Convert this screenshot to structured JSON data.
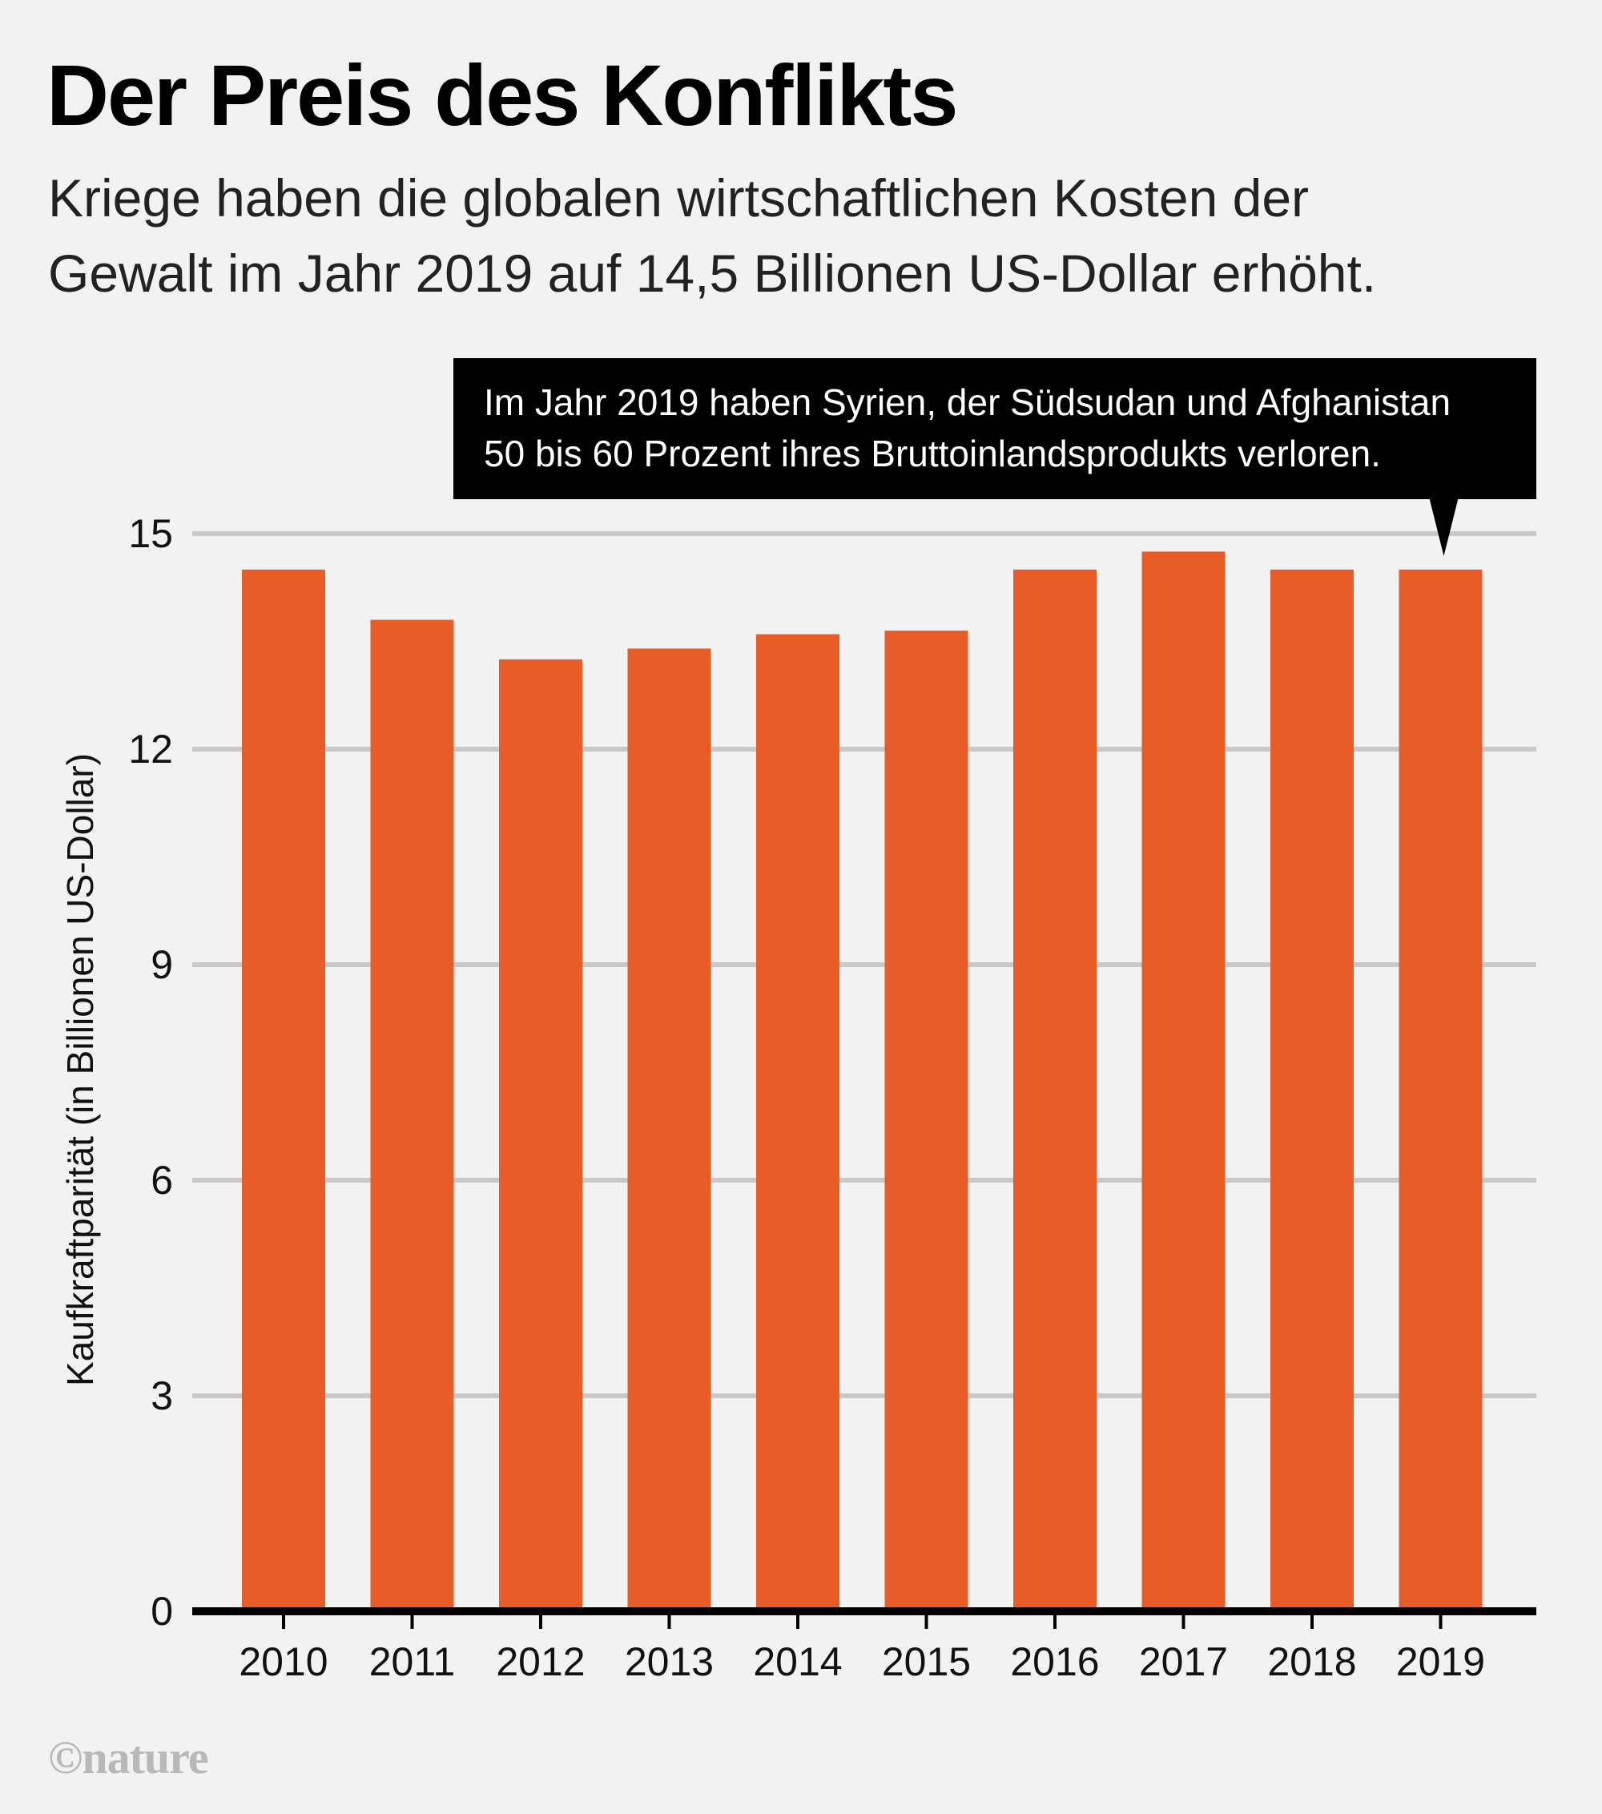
{
  "title": "Der Preis des Konflikts",
  "subtitle_lines": [
    "Kriege haben die globalen wirtschaftlichen Kosten der",
    "Gewalt im Jahr 2019 auf 14,5 Billionen US-Dollar erhöht."
  ],
  "credit": "©nature",
  "colors": {
    "bar": "#e85c27",
    "gridline": "#c8c8c8",
    "axis": "#000000",
    "callout_bg": "#000000",
    "callout_text": "#ffffff",
    "background": "#f2f2f2"
  },
  "chart_data": {
    "type": "bar",
    "title": "Der Preis des Konflikts",
    "xlabel": "",
    "ylabel": "Kaufkraftparität (in Billionen US-Dollar)",
    "categories": [
      "2010",
      "2011",
      "2012",
      "2013",
      "2014",
      "2015",
      "2016",
      "2017",
      "2018",
      "2019"
    ],
    "values": [
      14.5,
      13.8,
      13.25,
      13.4,
      13.6,
      13.65,
      14.5,
      14.75,
      14.5,
      14.5
    ],
    "ylim": [
      0,
      15
    ],
    "yticks": [
      0,
      3,
      6,
      9,
      12,
      15
    ],
    "grid": true,
    "annotations": [
      {
        "category": "2019",
        "lines": [
          "Im Jahr 2019 haben Syrien, der Südsudan und Afghanistan",
          "50 bis 60 Prozent ihres Bruttoinlandsprodukts verloren."
        ]
      }
    ]
  }
}
